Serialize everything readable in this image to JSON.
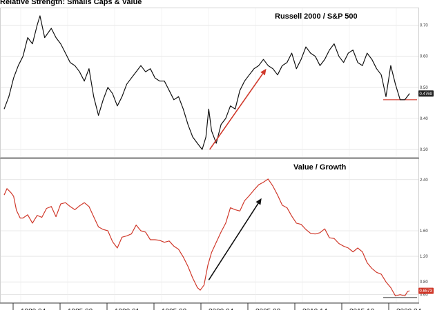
{
  "chart_data": {
    "title": "Relative Strength: Smalls Caps & Value",
    "type": "line",
    "x_tick_labels": [
      "1980 04",
      "1985 02",
      "1990 01",
      "1995 02",
      "2000 04",
      "2005 02",
      "2010 14",
      "2015 10",
      "2020 24"
    ],
    "panels": [
      {
        "title": "Russell 2000 / S&P 500",
        "color": "#111111",
        "ylim": [
          0.28,
          0.75
        ],
        "yticks": [
          "0.70",
          "0.60",
          "0.50",
          "0.40",
          "0.30"
        ],
        "last_value_label": "0.4769",
        "reference_level": 0.46,
        "reference_color": "#d0392b",
        "arrow": {
          "from": [
            1999.8,
            0.3
          ],
          "to": [
            2005.8,
            0.56
          ],
          "color": "#d0392b"
        },
        "series": [
          [
            1978.0,
            0.43
          ],
          [
            1978.5,
            0.47
          ],
          [
            1979.0,
            0.53
          ],
          [
            1979.5,
            0.57
          ],
          [
            1980.0,
            0.6
          ],
          [
            1980.5,
            0.66
          ],
          [
            1981.0,
            0.64
          ],
          [
            1981.5,
            0.7
          ],
          [
            1981.8,
            0.73
          ],
          [
            1982.3,
            0.66
          ],
          [
            1983.0,
            0.69
          ],
          [
            1983.5,
            0.66
          ],
          [
            1984.0,
            0.64
          ],
          [
            1984.5,
            0.61
          ],
          [
            1985.0,
            0.58
          ],
          [
            1985.5,
            0.57
          ],
          [
            1986.0,
            0.55
          ],
          [
            1986.5,
            0.52
          ],
          [
            1987.0,
            0.56
          ],
          [
            1987.5,
            0.47
          ],
          [
            1988.0,
            0.41
          ],
          [
            1988.5,
            0.46
          ],
          [
            1989.0,
            0.5
          ],
          [
            1989.5,
            0.48
          ],
          [
            1990.0,
            0.44
          ],
          [
            1990.5,
            0.47
          ],
          [
            1991.0,
            0.51
          ],
          [
            1991.5,
            0.53
          ],
          [
            1992.0,
            0.55
          ],
          [
            1992.5,
            0.57
          ],
          [
            1993.0,
            0.55
          ],
          [
            1993.5,
            0.56
          ],
          [
            1994.0,
            0.53
          ],
          [
            1994.5,
            0.52
          ],
          [
            1995.0,
            0.52
          ],
          [
            1995.5,
            0.49
          ],
          [
            1996.0,
            0.46
          ],
          [
            1996.5,
            0.47
          ],
          [
            1997.0,
            0.43
          ],
          [
            1997.5,
            0.38
          ],
          [
            1998.0,
            0.34
          ],
          [
            1998.5,
            0.32
          ],
          [
            1999.0,
            0.3
          ],
          [
            1999.4,
            0.34
          ],
          [
            1999.7,
            0.43
          ],
          [
            2000.0,
            0.36
          ],
          [
            2000.5,
            0.32
          ],
          [
            2001.0,
            0.38
          ],
          [
            2001.5,
            0.4
          ],
          [
            2002.0,
            0.44
          ],
          [
            2002.5,
            0.43
          ],
          [
            2003.0,
            0.49
          ],
          [
            2003.5,
            0.52
          ],
          [
            2004.0,
            0.54
          ],
          [
            2004.5,
            0.56
          ],
          [
            2005.0,
            0.57
          ],
          [
            2005.5,
            0.59
          ],
          [
            2006.0,
            0.57
          ],
          [
            2006.5,
            0.56
          ],
          [
            2007.0,
            0.54
          ],
          [
            2007.5,
            0.57
          ],
          [
            2008.0,
            0.58
          ],
          [
            2008.5,
            0.61
          ],
          [
            2009.0,
            0.56
          ],
          [
            2009.5,
            0.59
          ],
          [
            2010.0,
            0.63
          ],
          [
            2010.5,
            0.61
          ],
          [
            2011.0,
            0.6
          ],
          [
            2011.5,
            0.57
          ],
          [
            2012.0,
            0.59
          ],
          [
            2012.5,
            0.62
          ],
          [
            2013.0,
            0.64
          ],
          [
            2013.5,
            0.6
          ],
          [
            2014.0,
            0.58
          ],
          [
            2014.5,
            0.61
          ],
          [
            2015.0,
            0.62
          ],
          [
            2015.5,
            0.58
          ],
          [
            2016.0,
            0.57
          ],
          [
            2016.5,
            0.61
          ],
          [
            2017.0,
            0.59
          ],
          [
            2017.5,
            0.56
          ],
          [
            2018.0,
            0.54
          ],
          [
            2018.5,
            0.47
          ],
          [
            2019.0,
            0.57
          ],
          [
            2019.5,
            0.51
          ],
          [
            2020.0,
            0.46
          ],
          [
            2020.5,
            0.46
          ],
          [
            2021.0,
            0.48
          ]
        ]
      },
      {
        "title": "Value / Growth",
        "color": "#d0392b",
        "ylim": [
          0.5,
          2.7
        ],
        "yticks": [
          "2.40",
          "1.60",
          "1.20",
          "0.80",
          "0.60"
        ],
        "last_value_label": "0.6573",
        "reference_level": 0.555,
        "reference_color": "#555555",
        "arrow": {
          "from": [
            1999.7,
            0.83
          ],
          "to": [
            2005.3,
            2.11
          ],
          "color": "#111111"
        },
        "series": [
          [
            1978.0,
            2.16
          ],
          [
            1978.3,
            2.26
          ],
          [
            1978.7,
            2.2
          ],
          [
            1979.0,
            2.14
          ],
          [
            1979.3,
            1.92
          ],
          [
            1979.7,
            1.8
          ],
          [
            1980.0,
            1.8
          ],
          [
            1980.5,
            1.85
          ],
          [
            1981.0,
            1.72
          ],
          [
            1981.5,
            1.84
          ],
          [
            1982.0,
            1.81
          ],
          [
            1982.5,
            1.95
          ],
          [
            1983.0,
            1.98
          ],
          [
            1983.5,
            1.82
          ],
          [
            1984.0,
            2.02
          ],
          [
            1984.5,
            2.04
          ],
          [
            1985.0,
            1.98
          ],
          [
            1985.5,
            1.93
          ],
          [
            1986.0,
            1.99
          ],
          [
            1986.5,
            2.04
          ],
          [
            1987.0,
            1.98
          ],
          [
            1987.5,
            1.82
          ],
          [
            1988.0,
            1.66
          ],
          [
            1988.5,
            1.62
          ],
          [
            1989.0,
            1.6
          ],
          [
            1989.5,
            1.43
          ],
          [
            1990.0,
            1.33
          ],
          [
            1990.5,
            1.5
          ],
          [
            1991.0,
            1.52
          ],
          [
            1991.5,
            1.55
          ],
          [
            1992.0,
            1.69
          ],
          [
            1992.5,
            1.6
          ],
          [
            1993.0,
            1.58
          ],
          [
            1993.5,
            1.46
          ],
          [
            1994.0,
            1.46
          ],
          [
            1994.5,
            1.45
          ],
          [
            1995.0,
            1.42
          ],
          [
            1995.5,
            1.44
          ],
          [
            1996.0,
            1.36
          ],
          [
            1996.5,
            1.31
          ],
          [
            1997.0,
            1.19
          ],
          [
            1997.5,
            1.04
          ],
          [
            1998.0,
            0.86
          ],
          [
            1998.5,
            0.71
          ],
          [
            1998.8,
            0.67
          ],
          [
            1999.2,
            0.75
          ],
          [
            1999.6,
            1.06
          ],
          [
            2000.0,
            1.26
          ],
          [
            2000.5,
            1.42
          ],
          [
            2001.0,
            1.58
          ],
          [
            2001.5,
            1.72
          ],
          [
            2002.0,
            1.96
          ],
          [
            2002.5,
            1.93
          ],
          [
            2003.0,
            1.91
          ],
          [
            2003.5,
            2.07
          ],
          [
            2004.0,
            2.15
          ],
          [
            2004.5,
            2.24
          ],
          [
            2005.0,
            2.32
          ],
          [
            2005.5,
            2.36
          ],
          [
            2006.0,
            2.41
          ],
          [
            2006.5,
            2.3
          ],
          [
            2007.0,
            2.16
          ],
          [
            2007.5,
            2.0
          ],
          [
            2008.0,
            1.96
          ],
          [
            2008.5,
            1.83
          ],
          [
            2009.0,
            1.72
          ],
          [
            2009.5,
            1.7
          ],
          [
            2010.0,
            1.62
          ],
          [
            2010.5,
            1.56
          ],
          [
            2011.0,
            1.55
          ],
          [
            2011.5,
            1.57
          ],
          [
            2012.0,
            1.63
          ],
          [
            2012.5,
            1.49
          ],
          [
            2013.0,
            1.48
          ],
          [
            2013.5,
            1.4
          ],
          [
            2014.0,
            1.36
          ],
          [
            2014.5,
            1.33
          ],
          [
            2015.0,
            1.27
          ],
          [
            2015.5,
            1.33
          ],
          [
            2016.0,
            1.27
          ],
          [
            2016.5,
            1.1
          ],
          [
            2017.0,
            1.01
          ],
          [
            2017.5,
            0.95
          ],
          [
            2018.0,
            0.92
          ],
          [
            2018.5,
            0.8
          ],
          [
            2019.0,
            0.71
          ],
          [
            2019.5,
            0.58
          ],
          [
            2020.0,
            0.6
          ],
          [
            2020.5,
            0.58
          ],
          [
            2020.8,
            0.65
          ],
          [
            2021.0,
            0.66
          ]
        ]
      }
    ]
  }
}
